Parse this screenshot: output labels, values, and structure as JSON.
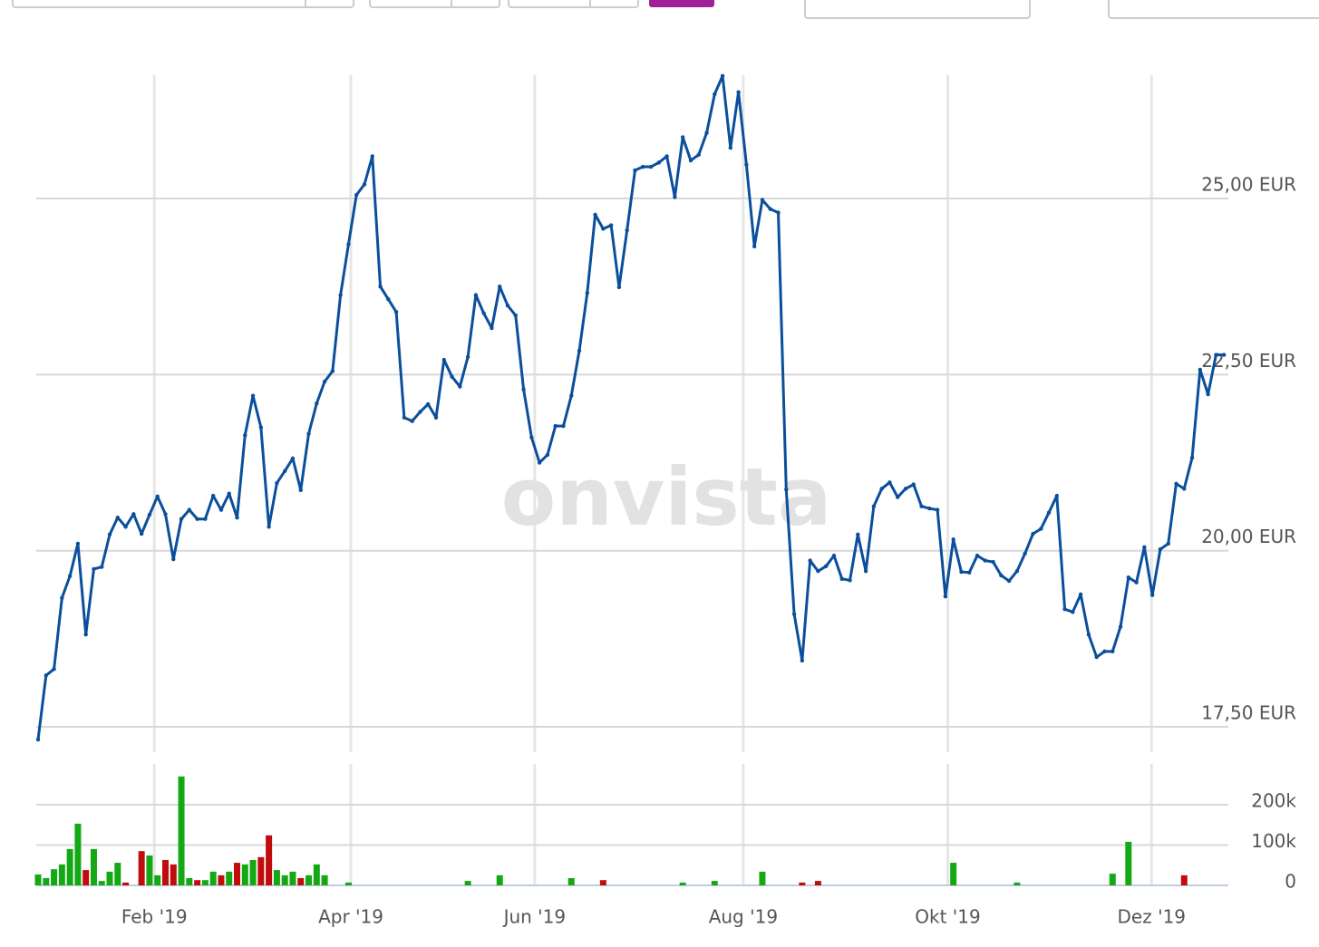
{
  "watermark": "onvista",
  "chart_data": [
    {
      "type": "line",
      "x": [
        0,
        1,
        2,
        3,
        4,
        5,
        6,
        7,
        8,
        9,
        10,
        11,
        12,
        13,
        14,
        15,
        16,
        17,
        18,
        19,
        20,
        21,
        22,
        23,
        24,
        25,
        26,
        27,
        28,
        29,
        30,
        31,
        32,
        33,
        34,
        35,
        36,
        37,
        38,
        39,
        40,
        41,
        42,
        43,
        44,
        45,
        46,
        47,
        48,
        49,
        50,
        51,
        52,
        53,
        54,
        55,
        56,
        57,
        58,
        59,
        60,
        61,
        62,
        63,
        64,
        65,
        66,
        67,
        68,
        69,
        70,
        71,
        72,
        73,
        74,
        75,
        76,
        77,
        78,
        79,
        80,
        81,
        82,
        83,
        84,
        85,
        86,
        87,
        88,
        89,
        90,
        91,
        92,
        93,
        94,
        95,
        96,
        97,
        98,
        99,
        100,
        101,
        102,
        103,
        104,
        105,
        106,
        107,
        108,
        109,
        110,
        111,
        112,
        113,
        114,
        115,
        116,
        117,
        118,
        119,
        120,
        121,
        122,
        123,
        124,
        125,
        126,
        127,
        128,
        129,
        130,
        131,
        132,
        133,
        134,
        135,
        136,
        137,
        138,
        139,
        140,
        141,
        142,
        143,
        144,
        145,
        146,
        147,
        148,
        149
      ],
      "series": [
        {
          "color": "#0b4f9c",
          "values": [
            17.32,
            18.23,
            18.32,
            19.33,
            19.64,
            20.1,
            18.81,
            19.74,
            19.77,
            20.23,
            20.47,
            20.34,
            20.52,
            20.24,
            20.51,
            20.77,
            20.52,
            19.88,
            20.45,
            20.58,
            20.45,
            20.45,
            20.78,
            20.58,
            20.81,
            20.47,
            21.64,
            22.2,
            21.75,
            20.34,
            20.96,
            21.13,
            21.31,
            20.86,
            21.66,
            22.09,
            22.4,
            22.55,
            23.63,
            24.35,
            25.05,
            25.2,
            25.6,
            23.75,
            23.57,
            23.39,
            21.89,
            21.84,
            21.97,
            22.08,
            21.89,
            22.71,
            22.47,
            22.33,
            22.75,
            23.63,
            23.37,
            23.16,
            23.75,
            23.48,
            23.34,
            22.29,
            21.61,
            21.25,
            21.36,
            21.77,
            21.77,
            22.2,
            22.84,
            23.66,
            24.77,
            24.57,
            24.62,
            23.74,
            24.55,
            25.4,
            25.45,
            25.45,
            25.51,
            25.6,
            25.02,
            25.87,
            25.54,
            25.62,
            25.93,
            26.48,
            26.74,
            25.72,
            26.51,
            25.48,
            24.32,
            24.98,
            24.85,
            24.8,
            20.87,
            19.1,
            18.44,
            19.86,
            19.71,
            19.78,
            19.93,
            19.6,
            19.58,
            20.23,
            19.71,
            20.63,
            20.88,
            20.97,
            20.76,
            20.88,
            20.94,
            20.63,
            20.6,
            20.58,
            19.35,
            20.16,
            19.7,
            19.69,
            19.93,
            19.86,
            19.84,
            19.65,
            19.57,
            19.71,
            19.96,
            20.24,
            20.31,
            20.54,
            20.78,
            19.17,
            19.13,
            19.38,
            18.81,
            18.49,
            18.57,
            18.57,
            18.92,
            19.62,
            19.55,
            20.05,
            19.37,
            20.02,
            20.1,
            20.95,
            20.88,
            21.32,
            22.57,
            22.22,
            22.78,
            22.78
          ]
        }
      ],
      "xlim": [
        -0.23,
        149.55
      ],
      "ylim": [
        17.14,
        26.75
      ],
      "yticks": [
        {
          "value": 17.5,
          "label": "17,50 EUR"
        },
        {
          "value": 20,
          "label": "20,00 EUR"
        },
        {
          "value": 22.5,
          "label": "22,50 EUR"
        },
        {
          "value": 25,
          "label": "25,00 EUR"
        }
      ],
      "grid": true
    },
    {
      "type": "bar",
      "x": [
        0,
        1,
        2,
        3,
        4,
        5,
        6,
        7,
        8,
        9,
        10,
        11,
        13,
        14,
        15,
        16,
        17,
        18,
        19,
        20,
        21,
        22,
        23,
        24,
        25,
        26,
        27,
        28,
        29,
        30,
        31,
        32,
        33,
        34,
        35,
        36,
        39,
        54,
        58,
        67,
        71,
        81,
        85,
        91,
        96,
        98,
        115,
        123,
        135,
        137,
        144
      ],
      "values": [
        27000,
        18000,
        40000,
        52000,
        90000,
        153000,
        38000,
        90000,
        11000,
        34000,
        56000,
        7000,
        85000,
        74000,
        25000,
        63000,
        52000,
        270000,
        18000,
        13000,
        13000,
        34000,
        25000,
        34000,
        56000,
        52000,
        63000,
        70000,
        124000,
        38000,
        25000,
        34000,
        18000,
        25000,
        52000,
        25000,
        7000,
        11000,
        25000,
        18000,
        13000,
        7000,
        11000,
        34000,
        7000,
        11000,
        56000,
        7000,
        29000,
        108000,
        25000
      ],
      "colors": [
        "#14a814",
        "#14a814",
        "#14a814",
        "#14a814",
        "#14a814",
        "#14a814",
        "#c00c0c",
        "#14a814",
        "#14a814",
        "#14a814",
        "#14a814",
        "#c00c0c",
        "#c00c0c",
        "#14a814",
        "#14a814",
        "#c00c0c",
        "#c00c0c",
        "#14a814",
        "#14a814",
        "#c00c0c",
        "#14a814",
        "#14a814",
        "#c00c0c",
        "#14a814",
        "#c00c0c",
        "#14a814",
        "#14a814",
        "#c00c0c",
        "#c00c0c",
        "#14a814",
        "#14a814",
        "#14a814",
        "#c00c0c",
        "#14a814",
        "#14a814",
        "#14a814",
        "#14a814",
        "#14a814",
        "#14a814",
        "#14a814",
        "#c00c0c",
        "#14a814",
        "#14a814",
        "#14a814",
        "#c00c0c",
        "#c00c0c",
        "#14a814",
        "#14a814",
        "#14a814",
        "#14a814",
        "#c00c0c"
      ],
      "xlim": [
        -0.23,
        149.55
      ],
      "xticks": [
        {
          "value": 14.6,
          "label": "Feb '19"
        },
        {
          "value": 39.3,
          "label": "Apr '19"
        },
        {
          "value": 62.4,
          "label": "Jun '19"
        },
        {
          "value": 88.6,
          "label": "Aug '19"
        },
        {
          "value": 114.3,
          "label": "Okt '19"
        },
        {
          "value": 139.9,
          "label": "Dez '19"
        }
      ],
      "ylim": [
        0,
        301000
      ],
      "yticks": [
        0,
        {
          "value": 100000,
          "label": "100k"
        },
        {
          "value": 200000,
          "label": "200k"
        }
      ],
      "grid": true
    }
  ]
}
